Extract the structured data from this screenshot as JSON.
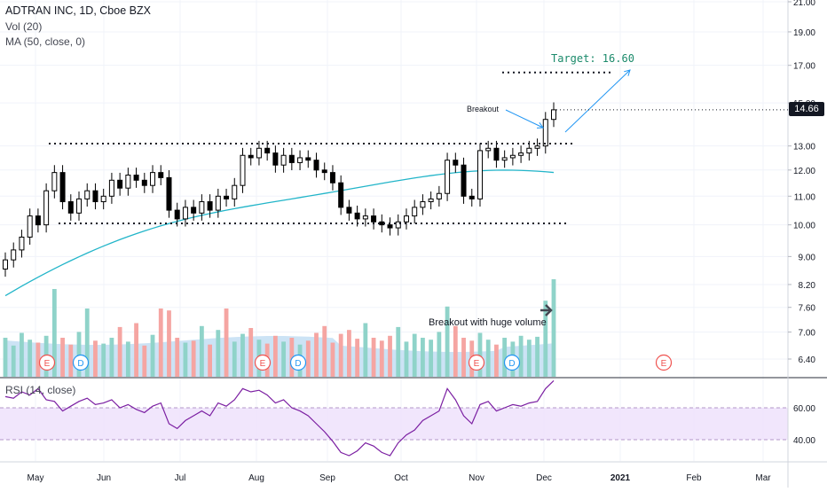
{
  "legend": {
    "title": "ADTRAN INC, 1D, Cboe BZX",
    "volume": "Vol (20)",
    "ma": "MA (50, close, 0)",
    "rsi": "RSI (14, close)"
  },
  "annotations": {
    "target": "Target: 16.60",
    "breakout": "Breakout",
    "volume_note": "Breakout with huge volume"
  },
  "last_price_label": "14.66",
  "colors": {
    "up": "#26a69a",
    "down": "#ef5350",
    "candle": "#000000",
    "ma_line": "#22b5c9",
    "rsi_line": "#7b1fa2",
    "rsi_band": "#ede0fb",
    "annotation_arrow": "#2196f3",
    "target_text": "#1b8a6b",
    "grid": "#f0f3fa"
  },
  "chart_data": {
    "type": "candlestick",
    "title": "ADTRAN INC, 1D, Cboe BZX",
    "x_ticks": [
      "May",
      "Jun",
      "Jul",
      "Aug",
      "Sep",
      "Oct",
      "Nov",
      "Dec",
      "2021",
      "Feb",
      "Mar"
    ],
    "price_axis": {
      "scale": "log",
      "ticks": [
        "21.00",
        "19.00",
        "17.00",
        "15.00",
        "13.00",
        "12.00",
        "11.00",
        "10.00",
        "9.00",
        "8.20",
        "7.60",
        "7.00",
        "6.40"
      ],
      "last": 14.66
    },
    "rsi_axis": {
      "ticks": [
        "60.00",
        "40.00"
      ],
      "band": [
        40,
        60
      ]
    },
    "levels": {
      "resistance": 13.1,
      "support": 10.05,
      "target": 16.6
    },
    "price_close": [
      8.9,
      9.2,
      9.6,
      10.3,
      10.0,
      11.2,
      11.9,
      10.8,
      10.4,
      10.9,
      11.2,
      10.8,
      11.0,
      11.6,
      11.3,
      11.8,
      11.6,
      11.4,
      11.9,
      11.7,
      10.5,
      10.2,
      10.6,
      10.4,
      10.8,
      10.5,
      11.0,
      10.9,
      11.4,
      12.6,
      12.5,
      12.9,
      12.7,
      12.2,
      12.6,
      12.3,
      12.5,
      12.4,
      12.0,
      11.9,
      11.5,
      10.6,
      10.4,
      10.2,
      10.3,
      10.1,
      10.0,
      9.9,
      10.1,
      10.3,
      10.6,
      10.8,
      10.9,
      11.1,
      12.4,
      12.2,
      11.0,
      10.9,
      12.8,
      12.9,
      12.4,
      12.5,
      12.6,
      12.7,
      12.9,
      13.0,
      14.2,
      14.66
    ],
    "ma50_start": 7.9,
    "ma50_end": 11.8,
    "volume_markers": [
      "E",
      "D",
      "E",
      "D",
      "E",
      "D",
      "E"
    ],
    "volume_heights": [
      0.4,
      0.32,
      0.45,
      0.38,
      0.35,
      0.42,
      0.9,
      0.4,
      0.33,
      0.46,
      0.7,
      0.37,
      0.34,
      0.4,
      0.51,
      0.36,
      0.55,
      0.32,
      0.43,
      0.7,
      0.68,
      0.4,
      0.35,
      0.37,
      0.52,
      0.33,
      0.48,
      0.7,
      0.36,
      0.44,
      0.5,
      0.38,
      0.34,
      0.42,
      0.36,
      0.4,
      0.33,
      0.37,
      0.45,
      0.52,
      0.35,
      0.44,
      0.48,
      0.39,
      0.55,
      0.4,
      0.37,
      0.42,
      0.51,
      0.36,
      0.44,
      0.4,
      0.38,
      0.46,
      0.72,
      0.52,
      0.4,
      0.37,
      0.45,
      0.38,
      0.33,
      0.4,
      0.36,
      0.42,
      0.38,
      0.41,
      0.78,
      1.0
    ],
    "rsi_values": [
      67,
      66,
      70,
      68,
      72,
      65,
      64,
      58,
      61,
      64,
      66,
      62,
      63,
      65,
      60,
      62,
      59,
      57,
      61,
      63,
      50,
      47,
      52,
      55,
      58,
      55,
      63,
      61,
      65,
      72,
      70,
      71,
      68,
      63,
      65,
      60,
      58,
      55,
      50,
      45,
      39,
      32,
      30,
      33,
      38,
      36,
      32,
      30,
      38,
      43,
      46,
      52,
      55,
      58,
      72,
      65,
      55,
      50,
      62,
      64,
      58,
      60,
      62,
      61,
      63,
      64,
      72,
      77
    ]
  }
}
